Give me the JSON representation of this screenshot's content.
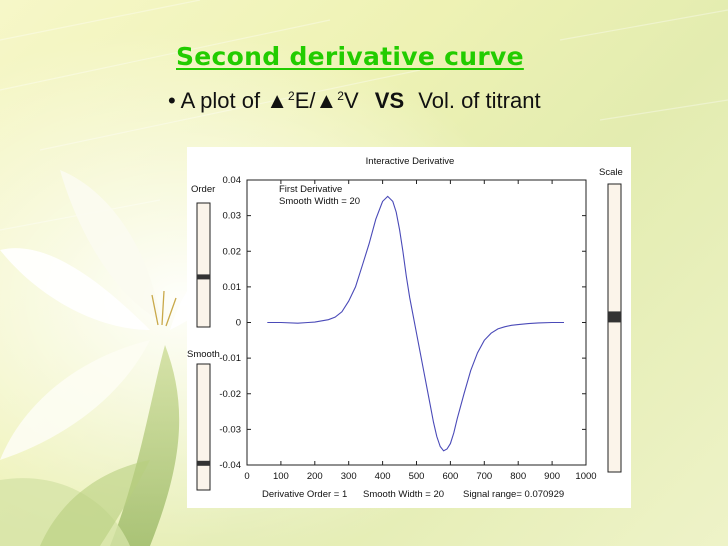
{
  "slide": {
    "title": "Second derivative curve",
    "bullet": {
      "marker": "•",
      "text_prefix": "A plot of ",
      "delta_symbol": "▲",
      "superscript": "2",
      "e_sep": "E/",
      "v_letter": "V",
      "vs": "VS",
      "text_suffix": "Vol. of titrant"
    }
  },
  "figure": {
    "window_title": "Interactive Derivative",
    "order_label": "Order",
    "smooth_label": "Smooth",
    "scale_label": "Scale",
    "order_slider_value": 0.6,
    "smooth_slider_value": 0.8,
    "scale_slider_value": 0.46,
    "status": {
      "derivative_order": "Derivative Order = 1",
      "smooth_width": "Smooth Width = 20",
      "signal_range": "Signal range= 0.070929"
    }
  },
  "chart_data": {
    "type": "line",
    "annotation": [
      "First Derivative",
      "Smooth Width = 20"
    ],
    "xlim": [
      0,
      1000
    ],
    "ylim": [
      -0.04,
      0.04
    ],
    "x_ticks": [
      "0",
      "100",
      "200",
      "300",
      "400",
      "500",
      "600",
      "700",
      "800",
      "900",
      "1000"
    ],
    "y_ticks": [
      "0.04",
      "0.03",
      "0.02",
      "0.01",
      "0",
      "-0.01",
      "-0.02",
      "-0.03",
      "-0.04"
    ],
    "line_color": "#4a4ab8",
    "series": [
      {
        "x": [
          60,
          100,
          150,
          180,
          200,
          240,
          260,
          280,
          300,
          320,
          340,
          360,
          380,
          400,
          415,
          430,
          440,
          450,
          460,
          470,
          480,
          490,
          500,
          510,
          520,
          530,
          540,
          550,
          560,
          570,
          580,
          590,
          600,
          610,
          620,
          640,
          660,
          680,
          700,
          720,
          740,
          760,
          780,
          800,
          830,
          860,
          900,
          935
        ],
        "y": [
          0.0,
          0.0,
          -0.0002,
          0.0,
          0.0001,
          0.0008,
          0.0015,
          0.003,
          0.006,
          0.01,
          0.016,
          0.022,
          0.029,
          0.034,
          0.0354,
          0.034,
          0.031,
          0.026,
          0.02,
          0.013,
          0.007,
          0.002,
          -0.003,
          -0.008,
          -0.013,
          -0.018,
          -0.023,
          -0.028,
          -0.032,
          -0.0348,
          -0.036,
          -0.0355,
          -0.034,
          -0.031,
          -0.027,
          -0.02,
          -0.0135,
          -0.0085,
          -0.005,
          -0.003,
          -0.0018,
          -0.0012,
          -0.0008,
          -0.0006,
          -0.0003,
          -0.0001,
          0.0,
          0.0
        ]
      }
    ]
  }
}
